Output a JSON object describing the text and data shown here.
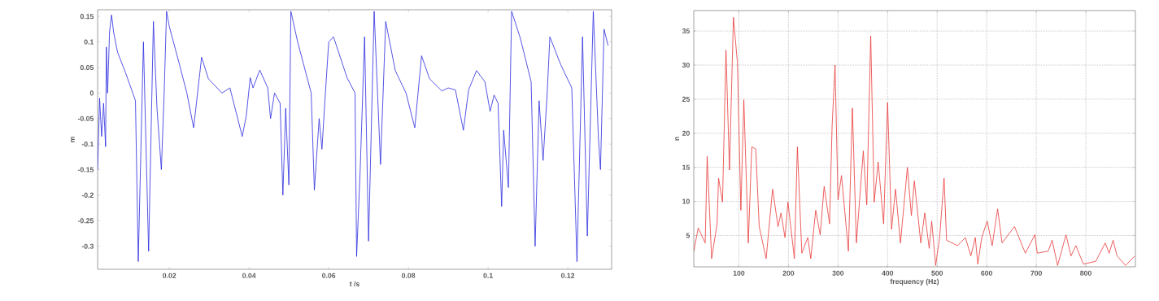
{
  "chart_data": [
    {
      "type": "line",
      "xlabel": "t /s",
      "ylabel": "m",
      "color": "#2a2ae0",
      "grid": false,
      "xlim": [
        0.002,
        0.131
      ],
      "ylim": [
        -0.345,
        0.163
      ],
      "xticks": [
        0.02,
        0.04,
        0.06,
        0.08,
        0.1,
        0.12
      ],
      "yticks": [
        -0.3,
        -0.25,
        -0.2,
        -0.15,
        -0.1,
        -0.05,
        0,
        0.05,
        0.1,
        0.15
      ],
      "x": [
        0.002,
        0.0025,
        0.003,
        0.0035,
        0.004,
        0.0042,
        0.0045,
        0.005,
        0.0055,
        0.006,
        0.007,
        0.009,
        0.0115,
        0.0122,
        0.0135,
        0.0148,
        0.016,
        0.0169,
        0.018,
        0.0187,
        0.0193,
        0.02,
        0.0224,
        0.0244,
        0.0261,
        0.0281,
        0.0298,
        0.0332,
        0.0352,
        0.0383,
        0.0393,
        0.0403,
        0.041,
        0.0427,
        0.0447,
        0.0454,
        0.0464,
        0.0478,
        0.0485,
        0.0492,
        0.05,
        0.0505,
        0.0522,
        0.0556,
        0.0564,
        0.0576,
        0.0583,
        0.059,
        0.06,
        0.0612,
        0.0646,
        0.0666,
        0.067,
        0.0679,
        0.069,
        0.07,
        0.0714,
        0.073,
        0.0743,
        0.0767,
        0.0794,
        0.0816,
        0.0833,
        0.0853,
        0.0884,
        0.09,
        0.0918,
        0.0938,
        0.0951,
        0.0971,
        0.0992,
        0.1005,
        0.1015,
        0.1025,
        0.1034,
        0.1039,
        0.1051,
        0.1059,
        0.1081,
        0.1108,
        0.1118,
        0.1128,
        0.1138,
        0.1148,
        0.1155,
        0.1182,
        0.121,
        0.1223,
        0.1237,
        0.1249,
        0.1264,
        0.1277,
        0.1282,
        0.1291,
        0.1301
      ],
      "values": [
        -0.15,
        -0.01,
        -0.085,
        -0.02,
        -0.105,
        0.09,
        0.0,
        0.12,
        0.153,
        0.12,
        0.08,
        0.04,
        -0.015,
        -0.33,
        0.1,
        -0.31,
        0.14,
        -0.03,
        -0.15,
        0.0,
        0.16,
        0.13,
        0.06,
        0.0,
        -0.068,
        0.07,
        0.028,
        0.0,
        0.01,
        -0.085,
        -0.045,
        0.03,
        0.01,
        0.045,
        0.01,
        -0.05,
        0.0,
        -0.02,
        -0.2,
        -0.03,
        -0.18,
        0.16,
        0.1,
        0.0,
        -0.19,
        -0.05,
        -0.11,
        -0.02,
        0.1,
        0.11,
        0.03,
        0.0,
        -0.32,
        -0.15,
        0.11,
        -0.29,
        0.16,
        -0.14,
        0.14,
        0.044,
        0.0,
        -0.068,
        0.073,
        0.028,
        0.004,
        0.01,
        0.006,
        -0.073,
        0.006,
        0.044,
        0.022,
        -0.036,
        -0.004,
        -0.02,
        -0.222,
        -0.073,
        -0.185,
        0.16,
        0.107,
        0.022,
        -0.3,
        -0.015,
        -0.132,
        -0.004,
        0.11,
        0.056,
        0.01,
        -0.33,
        0.11,
        -0.28,
        0.16,
        -0.09,
        -0.15,
        0.125,
        0.093
      ]
    },
    {
      "type": "line",
      "xlabel": "frequency (Hz)",
      "ylabel": "n",
      "color": "#e83838",
      "grid": true,
      "xlim": [
        9,
        900
      ],
      "ylim": [
        0.4,
        38
      ],
      "xticks": [
        100,
        200,
        300,
        400,
        500,
        600,
        700,
        800
      ],
      "yticks": [
        5,
        10,
        15,
        20,
        25,
        30,
        35
      ],
      "x": [
        9,
        18,
        32,
        36,
        45,
        56,
        59,
        67,
        74,
        81,
        89,
        97,
        104,
        110,
        119,
        126,
        134,
        141,
        155,
        168,
        179,
        185,
        193,
        199,
        212,
        218,
        227,
        239,
        245,
        255,
        264,
        272,
        283,
        288,
        294,
        300,
        307,
        321,
        329,
        337,
        351,
        358,
        366,
        373,
        381,
        392,
        400,
        408,
        416,
        426,
        440,
        448,
        454,
        467,
        475,
        484,
        489,
        497,
        505,
        514,
        519,
        541,
        557,
        568,
        577,
        582,
        590,
        601,
        611,
        622,
        631,
        656,
        678,
        697,
        702,
        724,
        732,
        743,
        760,
        770,
        780,
        795,
        820,
        839,
        847,
        855,
        863,
        880,
        899
      ],
      "values": [
        2.7,
        6.1,
        3.9,
        16.6,
        1.6,
        6.7,
        13.4,
        9.9,
        32.2,
        14.6,
        37,
        30.4,
        8.7,
        24.9,
        3.9,
        18,
        17.7,
        6.3,
        1.6,
        11.8,
        6.3,
        8.3,
        4.7,
        9.9,
        1.6,
        18,
        2.4,
        4.7,
        1.6,
        8.7,
        5.1,
        12.2,
        6.7,
        20.9,
        30,
        10.2,
        13.8,
        2.7,
        23.7,
        3.9,
        17.4,
        9.5,
        34.3,
        9.9,
        15.8,
        6.7,
        24.5,
        5.9,
        11.8,
        3.9,
        15,
        7.9,
        13,
        3.9,
        8.3,
        3.1,
        7.1,
        0.6,
        4.7,
        13.4,
        4.3,
        3.5,
        4.7,
        2.0,
        4.7,
        0.8,
        4.7,
        7.1,
        3.5,
        8.9,
        3.9,
        6.3,
        2.4,
        5.1,
        2.4,
        2.7,
        4.3,
        0.6,
        5.1,
        2.0,
        3.5,
        0.8,
        1.2,
        3.9,
        2.4,
        4.3,
        2.0,
        0.6,
        2.0
      ]
    }
  ]
}
